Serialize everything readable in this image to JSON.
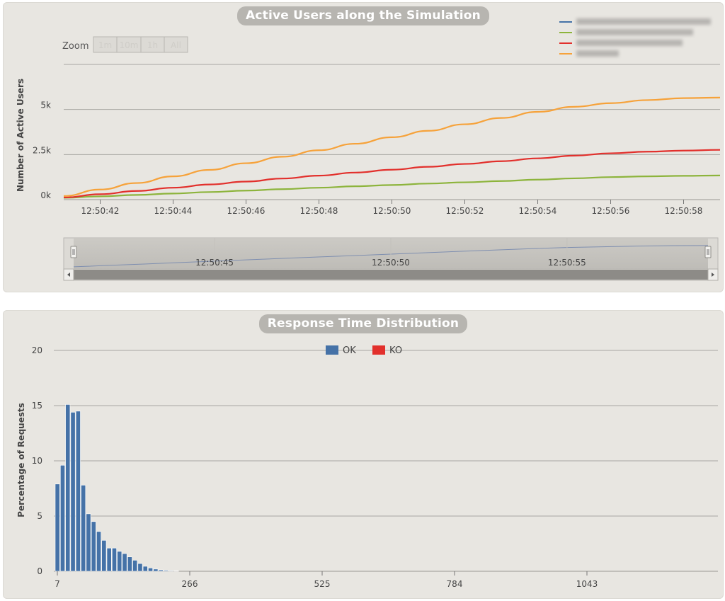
{
  "charts": {
    "active_users": {
      "title": "Active Users along the Simulation",
      "zoom": {
        "label": "Zoom",
        "buttons": [
          "1m",
          "10m",
          "1h",
          "All"
        ]
      },
      "legend_colors": [
        "#4572a7",
        "#8db43c",
        "#e2302c",
        "#f6a23a"
      ]
    },
    "response_time": {
      "title": "Response Time Distribution"
    }
  },
  "chart_data": [
    {
      "type": "line",
      "title": "Active Users along the Simulation",
      "xlabel": "",
      "ylabel": "Number of Active Users",
      "x_ticks": [
        "12:50:42",
        "12:50:44",
        "12:50:46",
        "12:50:48",
        "12:50:50",
        "12:50:52",
        "12:50:54",
        "12:50:56",
        "12:50:58"
      ],
      "x_range": [
        "12:50:41",
        "12:50:59"
      ],
      "y_ticks": [
        "0k",
        "2.5k",
        "5k"
      ],
      "ylim": [
        0,
        7500
      ],
      "grid": true,
      "legend": "top-right",
      "x": [
        "12:50:41",
        "12:50:42",
        "12:50:43",
        "12:50:44",
        "12:50:45",
        "12:50:46",
        "12:50:47",
        "12:50:48",
        "12:50:49",
        "12:50:50",
        "12:50:51",
        "12:50:52",
        "12:50:53",
        "12:50:54",
        "12:50:55",
        "12:50:56",
        "12:50:57",
        "12:50:58",
        "12:50:59"
      ],
      "series": [
        {
          "color": "#8db43c",
          "values": [
            100,
            180,
            260,
            340,
            420,
            500,
            580,
            660,
            740,
            810,
            890,
            960,
            1030,
            1110,
            1180,
            1250,
            1290,
            1320,
            1340
          ]
        },
        {
          "color": "#e2302c",
          "values": [
            120,
            300,
            480,
            660,
            840,
            1000,
            1170,
            1330,
            1500,
            1660,
            1820,
            1980,
            2130,
            2290,
            2440,
            2570,
            2660,
            2720,
            2760
          ]
        },
        {
          "color": "#f6a23a",
          "values": [
            200,
            560,
            920,
            1290,
            1650,
            2020,
            2380,
            2740,
            3100,
            3460,
            3820,
            4180,
            4530,
            4870,
            5150,
            5350,
            5520,
            5630,
            5660
          ]
        }
      ],
      "navigator": {
        "x_ticks": [
          "12:50:45",
          "12:50:50",
          "12:50:55"
        ]
      }
    },
    {
      "type": "bar",
      "title": "Response Time Distribution",
      "xlabel": "",
      "ylabel": "Percentage of Requests",
      "x_ticks": [
        "7",
        "266",
        "525",
        "784",
        "1043"
      ],
      "y_ticks": [
        0,
        5,
        10,
        15,
        20
      ],
      "ylim": [
        0,
        20
      ],
      "grid": true,
      "legend": "top-center",
      "series": [
        {
          "name": "OK",
          "color": "#4572a7",
          "values": [
            7.9,
            9.6,
            15.1,
            14.4,
            14.5,
            7.8,
            5.2,
            4.5,
            3.6,
            2.8,
            2.1,
            2.1,
            1.8,
            1.6,
            1.3,
            1.0,
            0.7,
            0.45,
            0.3,
            0.2,
            0.12,
            0.08,
            0.05,
            0.03
          ]
        },
        {
          "name": "KO",
          "color": "#e2302c",
          "values": []
        }
      ]
    }
  ]
}
